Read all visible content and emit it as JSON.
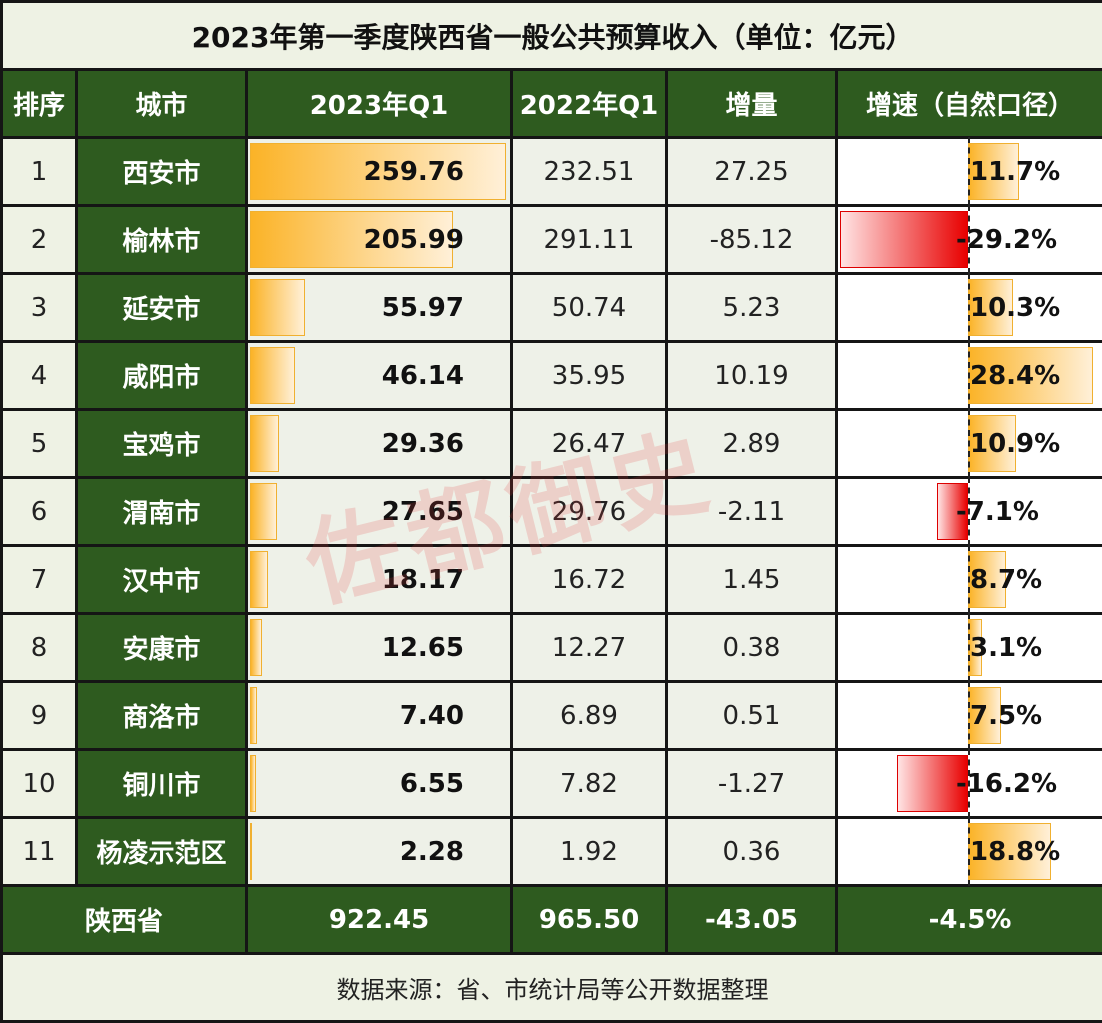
{
  "chart_data": {
    "type": "table",
    "title": "2023年第一季度陕西省一般公共预算收入（单位：亿元）",
    "columns": [
      "排序",
      "城市",
      "2023年Q1",
      "2022年Q1",
      "增量",
      "增速（自然口径）"
    ],
    "rows": [
      {
        "rank": "1",
        "city": "西安市",
        "q2023": "259.76",
        "q2022": "232.51",
        "change": "27.25",
        "growth": "11.7%",
        "g": 11.7,
        "v": 259.76
      },
      {
        "rank": "2",
        "city": "榆林市",
        "q2023": "205.99",
        "q2022": "291.11",
        "change": "-85.12",
        "growth": "-29.2%",
        "g": -29.2,
        "v": 205.99
      },
      {
        "rank": "3",
        "city": "延安市",
        "q2023": "55.97",
        "q2022": "50.74",
        "change": "5.23",
        "growth": "10.3%",
        "g": 10.3,
        "v": 55.97
      },
      {
        "rank": "4",
        "city": "咸阳市",
        "q2023": "46.14",
        "q2022": "35.95",
        "change": "10.19",
        "growth": "28.4%",
        "g": 28.4,
        "v": 46.14
      },
      {
        "rank": "5",
        "city": "宝鸡市",
        "q2023": "29.36",
        "q2022": "26.47",
        "change": "2.89",
        "growth": "10.9%",
        "g": 10.9,
        "v": 29.36
      },
      {
        "rank": "6",
        "city": "渭南市",
        "q2023": "27.65",
        "q2022": "29.76",
        "change": "-2.11",
        "growth": "-7.1%",
        "g": -7.1,
        "v": 27.65
      },
      {
        "rank": "7",
        "city": "汉中市",
        "q2023": "18.17",
        "q2022": "16.72",
        "change": "1.45",
        "growth": "8.7%",
        "g": 8.7,
        "v": 18.17
      },
      {
        "rank": "8",
        "city": "安康市",
        "q2023": "12.65",
        "q2022": "12.27",
        "change": "0.38",
        "growth": "3.1%",
        "g": 3.1,
        "v": 12.65
      },
      {
        "rank": "9",
        "city": "商洛市",
        "q2023": "7.40",
        "q2022": "6.89",
        "change": "0.51",
        "growth": "7.5%",
        "g": 7.5,
        "v": 7.4
      },
      {
        "rank": "10",
        "city": "铜川市",
        "q2023": "6.55",
        "q2022": "7.82",
        "change": "-1.27",
        "growth": "-16.2%",
        "g": -16.2,
        "v": 6.55
      },
      {
        "rank": "11",
        "city": "杨凌示范区",
        "q2023": "2.28",
        "q2022": "1.92",
        "change": "0.36",
        "growth": "18.8%",
        "g": 18.8,
        "v": 2.28
      }
    ],
    "total": {
      "label": "陕西省",
      "q2023": "922.45",
      "q2022": "965.50",
      "change": "-43.05",
      "growth": "-4.5%"
    },
    "source": "数据来源：省、市统计局等公开数据整理",
    "colors": {
      "header": "#2e5b1f",
      "positive_bar": "#fbb327",
      "negative_bar": "#e80000"
    }
  },
  "watermark": "佐都御史"
}
